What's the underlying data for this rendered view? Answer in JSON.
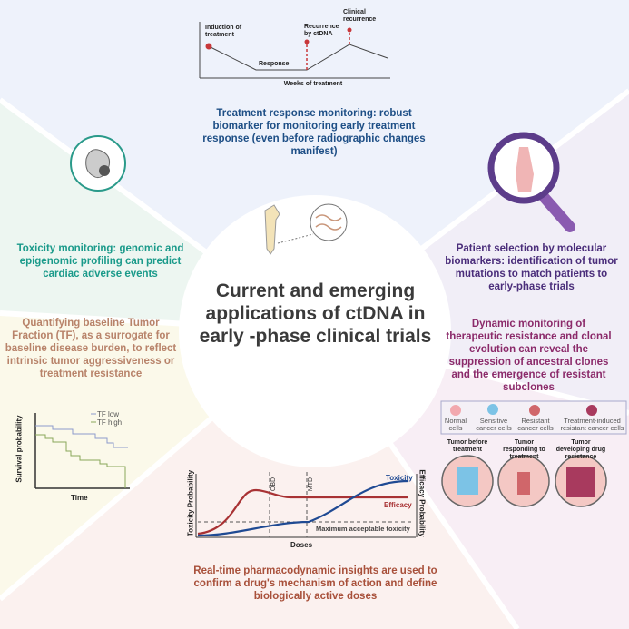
{
  "center_title": "Current and emerging applications of ctDNA in early -phase clinical trials",
  "sections": {
    "treatment_response": {
      "caption": "Treatment response monitoring: robust biomarker for monitoring early treatment response (even before radiographic changes manifest)",
      "chart": {
        "xlabel": "Weeks of treatment",
        "labels": {
          "induction": "Induction of treatment",
          "response": "Response",
          "recurrence_ctdna": "Recurrence by ctDNA",
          "clinical": "Clinical recurrence"
        }
      }
    },
    "toxicity": {
      "caption": "Toxicity monitoring: genomic and epigenomic profiling can predict cardiac adverse events"
    },
    "patient_selection": {
      "caption": "Patient selection by molecular biomarkers: identification of tumor mutations to match patients to early-phase trials"
    },
    "baseline_tf": {
      "caption": "Quantifying baseline Tumor Fraction (TF), as a surrogate for baseline disease burden, to reflect intrinsic tumor aggressiveness or treatment resistance",
      "chart": {
        "ylabel": "Survival probability",
        "xlabel": "Time",
        "legend": [
          "TF low",
          "TF high"
        ],
        "colors": [
          "#8e9ccc",
          "#8aa85a"
        ]
      }
    },
    "dynamic_monitoring": {
      "caption": "Dynamic monitoring of therapeutic resistance and clonal evolution can reveal the suppression of ancestral clones and the emergence of resistant subclones",
      "legend": [
        {
          "label": "Normal cells",
          "color": "#f2a8ae"
        },
        {
          "label": "Sensitive cancer cells",
          "color": "#7cc3e6"
        },
        {
          "label": "Resistant cancer cells",
          "color": "#d0666a"
        },
        {
          "label": "Treatment-induced resistant cancer cells",
          "color": "#a83a5e"
        }
      ],
      "stages": [
        "Tumor before treatment",
        "Tumor responding to treatment",
        "Tumor developing drug resistance"
      ]
    },
    "pharmacodynamic": {
      "caption": "Real-time pharmacodynamic insights are used to confirm a drug's mechanism of action and define biologically active doses",
      "chart": {
        "ylabel_left": "Toxicity Probability",
        "ylabel_right": "Efficacy Probability",
        "xlabel": "Doses",
        "series": [
          "Toxicity",
          "Efficacy"
        ],
        "colors": [
          "#1f4a93",
          "#a83234"
        ],
        "markers": [
          "OBD",
          "MTD"
        ],
        "threshold_label": "Maximum acceptable toxicity"
      }
    }
  },
  "colors": {
    "top": "#eef2fb",
    "left": "#edf6f1",
    "right": "#f1eef7",
    "bottom_left": "#fbf9ea",
    "bottom": "#fbf1ef",
    "bottom_right": "#f8eef5"
  }
}
